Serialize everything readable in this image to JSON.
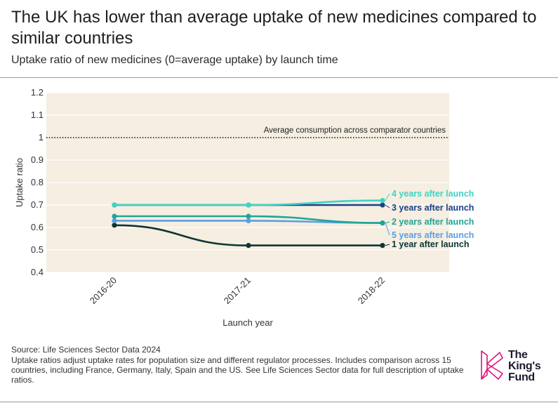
{
  "header": {
    "title": "The UK has lower than average uptake of new medicines compared to similar countries",
    "subtitle": "Uptake ratio of new medicines (0=average uptake) by launch time"
  },
  "footer": {
    "source": "Source: Life Sciences Sector Data 2024",
    "note": "Uptake ratios adjust uptake rates for population size and different regulator processes. Includes comparison across 15 countries, including France, Germany, Italy, Spain and the US. See Life Sciences Sector data for full description of uptake ratios."
  },
  "logo": {
    "line1": "The",
    "line2": "King's",
    "line3": "Fund",
    "color": "#e0147d"
  },
  "chart_data": {
    "type": "line",
    "title": "The UK has lower than average uptake of new medicines compared to similar countries",
    "subtitle": "Uptake ratio of new medicines (0=average uptake) by launch time",
    "xlabel": "Launch year",
    "ylabel": "Uptake ratio",
    "categories": [
      "2016-20",
      "2017-21",
      "2018-22"
    ],
    "ylim": [
      0.4,
      1.2
    ],
    "yticks": [
      "0.4",
      "0.5",
      "0.6",
      "0.7",
      "0.8",
      "0.9",
      "1",
      "1.1",
      "1.2"
    ],
    "background": "#f5eee1",
    "reference_line": {
      "value": 1,
      "label": "Average consumption across comparator countries"
    },
    "series": [
      {
        "name": "4 years after launch",
        "values": [
          0.7,
          0.7,
          0.72
        ],
        "color": "#3fd3c4"
      },
      {
        "name": "3 years after launch",
        "values": [
          0.7,
          0.7,
          0.7
        ],
        "color": "#1b3f8a"
      },
      {
        "name": "2 years after launch",
        "values": [
          0.65,
          0.65,
          0.62
        ],
        "color": "#1fa596"
      },
      {
        "name": "5 years after launch",
        "values": [
          0.63,
          0.63,
          0.62
        ],
        "color": "#5b9fe2"
      },
      {
        "name": "1 year after launch",
        "values": [
          0.61,
          0.52,
          0.52
        ],
        "color": "#0d3535"
      }
    ]
  }
}
